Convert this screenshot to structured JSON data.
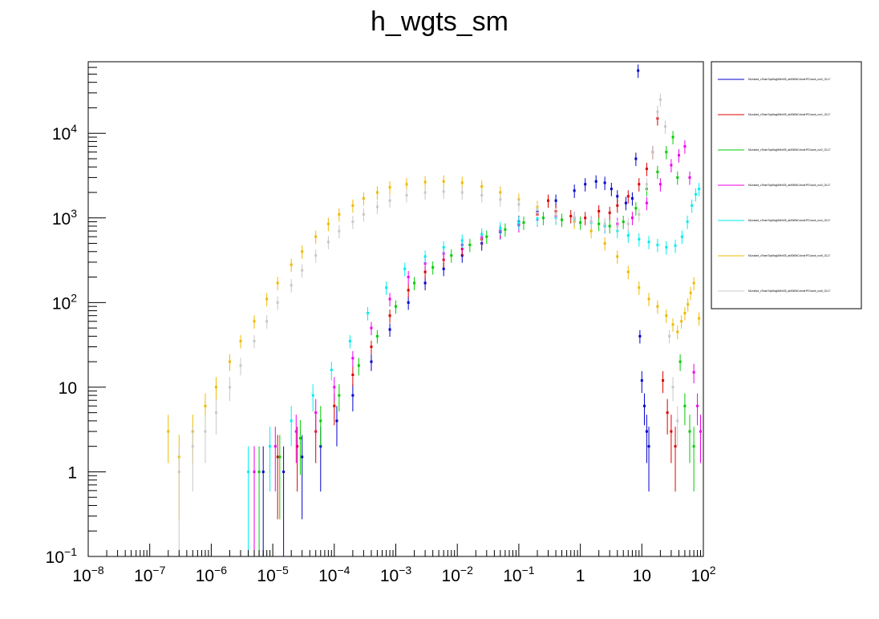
{
  "chart_data": {
    "type": "scatter",
    "title": "h_wgts_sm",
    "xlabel": "",
    "ylabel": "",
    "x_scale": "log",
    "y_scale": "log",
    "xlim": [
      1e-08,
      100
    ],
    "ylim": [
      0.1,
      70000
    ],
    "x_ticks": [
      {
        "base": "10",
        "exp": "−8",
        "value": 1e-08
      },
      {
        "base": "10",
        "exp": "−7",
        "value": 1e-07
      },
      {
        "base": "10",
        "exp": "−6",
        "value": 1e-06
      },
      {
        "base": "10",
        "exp": "−5",
        "value": 1e-05
      },
      {
        "base": "10",
        "exp": "−4",
        "value": 0.0001
      },
      {
        "base": "10",
        "exp": "−3",
        "value": 0.001
      },
      {
        "base": "10",
        "exp": "−2",
        "value": 0.01
      },
      {
        "base": "10",
        "exp": "−1",
        "value": 0.1
      },
      {
        "base": "1",
        "exp": "",
        "value": 1
      },
      {
        "base": "10",
        "exp": "",
        "value": 10
      },
      {
        "base": "10",
        "exp": "2",
        "value": 100
      }
    ],
    "y_ticks": [
      {
        "base": "10",
        "exp": "−1",
        "value": 0.1
      },
      {
        "base": "1",
        "exp": "",
        "value": 1
      },
      {
        "base": "10",
        "exp": "",
        "value": 10
      },
      {
        "base": "10",
        "exp": "2",
        "value": 100
      },
      {
        "base": "10",
        "exp": "3",
        "value": 1000
      },
      {
        "base": "10",
        "exp": "4",
        "value": 10000
      }
    ],
    "grid": false,
    "legend_position": "right",
    "series": [
      {
        "name": "MLeaked_cTeamTopMag0MbhS5_abiSMWCcbnsHPC/work_run0_OL17",
        "color": "#0000cc",
        "points": [
          [
            7e-06,
            1
          ],
          [
            1.5e-05,
            1
          ],
          [
            3e-05,
            1.5
          ],
          [
            6e-05,
            2
          ],
          [
            0.00011,
            4
          ],
          [
            0.0002,
            8
          ],
          [
            0.0004,
            20
          ],
          [
            0.0008,
            48
          ],
          [
            0.0016,
            100
          ],
          [
            0.003,
            170
          ],
          [
            0.006,
            250
          ],
          [
            0.012,
            360
          ],
          [
            0.025,
            500
          ],
          [
            0.05,
            680
          ],
          [
            0.1,
            900
          ],
          [
            0.2,
            1200
          ],
          [
            0.4,
            1600
          ],
          [
            0.8,
            2100
          ],
          [
            1.2,
            2500
          ],
          [
            1.8,
            2700
          ],
          [
            2.5,
            2600
          ],
          [
            3.2,
            2200
          ],
          [
            4,
            1800
          ],
          [
            5.5,
            1500
          ],
          [
            7,
            1700
          ],
          [
            8,
            5000
          ],
          [
            8.7,
            55000
          ],
          [
            9.3,
            40
          ],
          [
            10,
            12
          ],
          [
            11,
            6
          ],
          [
            12,
            3
          ],
          [
            13,
            2
          ]
        ]
      },
      {
        "name": "MLeaked_cTeamTopMag0MbhS5_abiSMWCcbnsHPC/work_run1_OL17",
        "color": "#dd0000",
        "points": [
          [
            5e-06,
            1
          ],
          [
            1.2e-05,
            1.5
          ],
          [
            2.5e-05,
            2
          ],
          [
            5e-05,
            3
          ],
          [
            0.0001,
            6
          ],
          [
            0.0002,
            14
          ],
          [
            0.0004,
            30
          ],
          [
            0.0008,
            70
          ],
          [
            0.0016,
            140
          ],
          [
            0.003,
            230
          ],
          [
            0.006,
            320
          ],
          [
            0.012,
            430
          ],
          [
            0.025,
            560
          ],
          [
            0.05,
            700
          ],
          [
            0.1,
            850
          ],
          [
            0.2,
            1100
          ],
          [
            0.3,
            1600
          ],
          [
            0.4,
            1200
          ],
          [
            0.7,
            1050
          ],
          [
            1.2,
            1000
          ],
          [
            2,
            1200
          ],
          [
            3,
            1150
          ],
          [
            4,
            1400
          ],
          [
            6,
            1800
          ],
          [
            9,
            2500
          ],
          [
            12,
            3800
          ],
          [
            15,
            6000
          ],
          [
            18,
            15000
          ],
          [
            22,
            12
          ],
          [
            26,
            5
          ],
          [
            30,
            3
          ],
          [
            35,
            2
          ]
        ]
      },
      {
        "name": "MLeaked_cTeamTopMag0MbhS5_abiSMWCcbnsHPC/work_run2_OL17",
        "color": "#00cc00",
        "points": [
          [
            6e-06,
            1
          ],
          [
            1.3e-05,
            1.5
          ],
          [
            2.8e-05,
            2.5
          ],
          [
            6e-05,
            4
          ],
          [
            0.00012,
            8
          ],
          [
            0.00025,
            18
          ],
          [
            0.0005,
            40
          ],
          [
            0.001,
            90
          ],
          [
            0.002,
            170
          ],
          [
            0.004,
            260
          ],
          [
            0.008,
            360
          ],
          [
            0.016,
            480
          ],
          [
            0.03,
            600
          ],
          [
            0.06,
            730
          ],
          [
            0.12,
            880
          ],
          [
            0.25,
            1000
          ],
          [
            0.5,
            950
          ],
          [
            1,
            880
          ],
          [
            2,
            850
          ],
          [
            3,
            800
          ],
          [
            5,
            900
          ],
          [
            8,
            1300
          ],
          [
            12,
            2200
          ],
          [
            18,
            3500
          ],
          [
            25,
            6000
          ],
          [
            32,
            9000
          ],
          [
            38,
            3000
          ],
          [
            42,
            20
          ],
          [
            50,
            6
          ],
          [
            60,
            3
          ],
          [
            70,
            2
          ]
        ]
      },
      {
        "name": "MLeaked_cTeamTopMag0MbhS5_abiSMWCcbnsHPC/work_run3_OL17",
        "color": "#ee00ee",
        "points": [
          [
            5e-06,
            1
          ],
          [
            1.1e-05,
            2
          ],
          [
            2.4e-05,
            3
          ],
          [
            5e-05,
            5
          ],
          [
            0.0001,
            10
          ],
          [
            0.0002,
            22
          ],
          [
            0.0004,
            50
          ],
          [
            0.0008,
            110
          ],
          [
            0.0016,
            200
          ],
          [
            0.003,
            290
          ],
          [
            0.006,
            380
          ],
          [
            0.012,
            480
          ],
          [
            0.025,
            590
          ],
          [
            0.05,
            700
          ],
          [
            0.1,
            820
          ],
          [
            0.2,
            960
          ],
          [
            0.4,
            1050
          ],
          [
            0.8,
            1000
          ],
          [
            1.5,
            900
          ],
          [
            2.5,
            800
          ],
          [
            4,
            850
          ],
          [
            7,
            1000
          ],
          [
            12,
            1500
          ],
          [
            20,
            2500
          ],
          [
            30,
            4200
          ],
          [
            40,
            5500
          ],
          [
            50,
            7000
          ],
          [
            60,
            3000
          ],
          [
            70,
            15
          ],
          [
            80,
            6
          ],
          [
            90,
            3
          ]
        ]
      },
      {
        "name": "MLeaked_cTeamTopMag0MbhS5_abiSMWCcbnsHPC/work_run4_OL17",
        "color": "#00eeee",
        "points": [
          [
            4e-06,
            1
          ],
          [
            9e-06,
            2
          ],
          [
            2e-05,
            4
          ],
          [
            4.5e-05,
            8
          ],
          [
            9e-05,
            16
          ],
          [
            0.00018,
            35
          ],
          [
            0.00035,
            75
          ],
          [
            0.0007,
            150
          ],
          [
            0.0014,
            250
          ],
          [
            0.003,
            350
          ],
          [
            0.006,
            450
          ],
          [
            0.012,
            540
          ],
          [
            0.025,
            640
          ],
          [
            0.05,
            760
          ],
          [
            0.1,
            880
          ],
          [
            0.2,
            980
          ],
          [
            0.4,
            1000
          ],
          [
            0.8,
            960
          ],
          [
            1.5,
            880
          ],
          [
            2.5,
            800
          ],
          [
            4,
            700
          ],
          [
            6,
            620
          ],
          [
            9,
            560
          ],
          [
            13,
            520
          ],
          [
            18,
            480
          ],
          [
            25,
            450
          ],
          [
            35,
            470
          ],
          [
            45,
            600
          ],
          [
            55,
            900
          ],
          [
            65,
            1400
          ],
          [
            75,
            1900
          ],
          [
            85,
            2200
          ]
        ]
      },
      {
        "name": "MLeaked_cTeamTopMag0MbhS5_abiSMWCcbnsHPC/work_run5_OL17",
        "color": "#eebb00",
        "points": [
          [
            2e-07,
            3
          ],
          [
            3e-07,
            1.5
          ],
          [
            5e-07,
            3
          ],
          [
            8e-07,
            6
          ],
          [
            1.2e-06,
            10
          ],
          [
            2e-06,
            20
          ],
          [
            3e-06,
            35
          ],
          [
            5e-06,
            60
          ],
          [
            8e-06,
            110
          ],
          [
            1.2e-05,
            170
          ],
          [
            2e-05,
            280
          ],
          [
            3e-05,
            400
          ],
          [
            5e-05,
            600
          ],
          [
            8e-05,
            850
          ],
          [
            0.00012,
            1100
          ],
          [
            0.0002,
            1400
          ],
          [
            0.0003,
            1700
          ],
          [
            0.0005,
            2000
          ],
          [
            0.0008,
            2300
          ],
          [
            0.0015,
            2500
          ],
          [
            0.003,
            2650
          ],
          [
            0.006,
            2700
          ],
          [
            0.012,
            2600
          ],
          [
            0.025,
            2350
          ],
          [
            0.05,
            2000
          ],
          [
            0.1,
            1650
          ],
          [
            0.2,
            1350
          ],
          [
            0.4,
            1100
          ],
          [
            0.8,
            900
          ],
          [
            1.5,
            700
          ],
          [
            2.5,
            500
          ],
          [
            4,
            350
          ],
          [
            6,
            230
          ],
          [
            9,
            150
          ],
          [
            13,
            110
          ],
          [
            18,
            90
          ],
          [
            25,
            70
          ],
          [
            32,
            55
          ],
          [
            38,
            45
          ],
          [
            44,
            60
          ],
          [
            50,
            75
          ],
          [
            56,
            95
          ],
          [
            62,
            130
          ],
          [
            70,
            170
          ],
          [
            85,
            65
          ]
        ]
      },
      {
        "name": "MLeaked_cTeamTopMag0MbhS5_abiSMWCcbnsHPC/work_run6_OL17",
        "color": "#c8c8c8",
        "points": [
          [
            3e-07,
            1
          ],
          [
            5e-07,
            2
          ],
          [
            8e-07,
            3
          ],
          [
            1.2e-06,
            5
          ],
          [
            2e-06,
            10
          ],
          [
            3e-06,
            18
          ],
          [
            5e-06,
            35
          ],
          [
            8e-06,
            60
          ],
          [
            1.2e-05,
            100
          ],
          [
            2e-05,
            160
          ],
          [
            3e-05,
            240
          ],
          [
            5e-05,
            360
          ],
          [
            8e-05,
            520
          ],
          [
            0.00012,
            700
          ],
          [
            0.0002,
            900
          ],
          [
            0.0003,
            1100
          ],
          [
            0.0005,
            1350
          ],
          [
            0.0008,
            1600
          ],
          [
            0.0015,
            1850
          ],
          [
            0.003,
            2000
          ],
          [
            0.006,
            2050
          ],
          [
            0.012,
            2000
          ],
          [
            0.025,
            1850
          ],
          [
            0.05,
            1650
          ],
          [
            0.1,
            1450
          ],
          [
            0.2,
            1250
          ],
          [
            0.4,
            1100
          ],
          [
            0.8,
            1000
          ],
          [
            1.5,
            900
          ],
          [
            2.5,
            850
          ],
          [
            4,
            800
          ],
          [
            6,
            850
          ],
          [
            9,
            1100
          ],
          [
            12,
            2500
          ],
          [
            15,
            6000
          ],
          [
            18,
            18000
          ],
          [
            20,
            25000
          ],
          [
            24,
            12000
          ],
          [
            28,
            40
          ],
          [
            32,
            10
          ],
          [
            38,
            4
          ]
        ]
      }
    ]
  }
}
